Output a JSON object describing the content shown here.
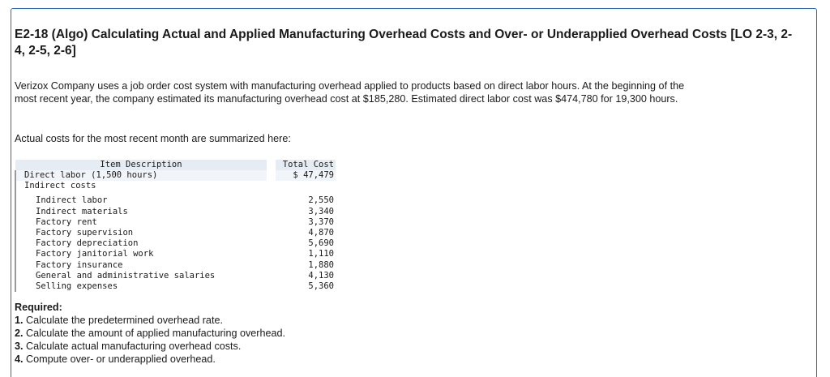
{
  "title": "E2-18 (Algo) Calculating Actual and Applied Manufacturing Overhead Costs and Over- or Underapplied Overhead Costs [LO 2-3, 2-4, 2-5, 2-6]",
  "intro": "Verizox Company uses a job order cost system with manufacturing overhead applied to products based on direct labor hours. At the beginning of the most recent year, the company estimated its manufacturing overhead cost at $185,280. Estimated direct labor cost was $474,780 for 19,300 hours.",
  "actual_costs_intro": "Actual costs for the most recent month are summarized here:",
  "table": {
    "header_description": "Item Description",
    "header_total": "Total Cost",
    "direct_labor": {
      "label": "Direct labor (1,500 hours)",
      "amount": "$ 47,479"
    },
    "indirect_heading": "Indirect costs",
    "indirect_items": [
      {
        "label": "Indirect labor",
        "amount": "2,550"
      },
      {
        "label": "Indirect materials",
        "amount": "3,340"
      },
      {
        "label": "Factory rent",
        "amount": "3,370"
      },
      {
        "label": "Factory supervision",
        "amount": "4,870"
      },
      {
        "label": "Factory depreciation",
        "amount": "5,690"
      },
      {
        "label": "Factory janitorial work",
        "amount": "1,110"
      },
      {
        "label": "Factory insurance",
        "amount": "1,880"
      },
      {
        "label": "General and administrative salaries",
        "amount": "4,130"
      },
      {
        "label": "Selling expenses",
        "amount": "5,360"
      }
    ]
  },
  "required": {
    "heading": "Required:",
    "items": [
      {
        "num": "1.",
        "text": "Calculate the predetermined overhead rate."
      },
      {
        "num": "2.",
        "text": "Calculate the amount of applied manufacturing overhead."
      },
      {
        "num": "3.",
        "text": "Calculate actual manufacturing overhead costs."
      },
      {
        "num": "4.",
        "text": "Compute over- or underapplied overhead."
      }
    ]
  }
}
